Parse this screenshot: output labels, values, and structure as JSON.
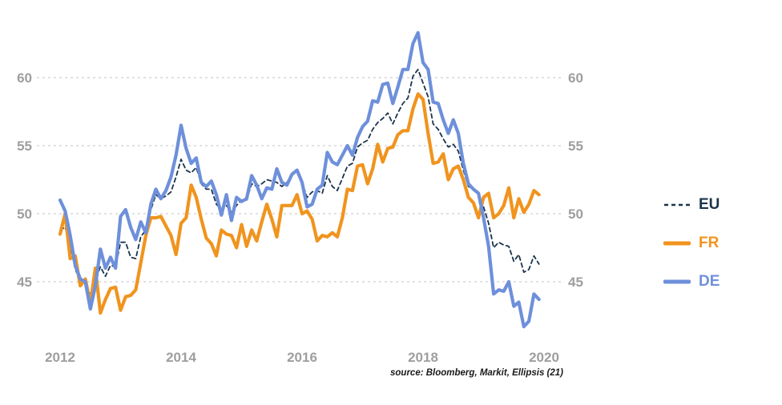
{
  "chart_data": {
    "type": "line",
    "title": "",
    "xlabel": "",
    "ylabel": "",
    "x_ticks": [
      2012,
      2014,
      2016,
      2018,
      2020
    ],
    "y_ticks": [
      45,
      50,
      55,
      60
    ],
    "xlim": [
      2011.6,
      2020.3
    ],
    "ylim": [
      40.5,
      65.0
    ],
    "grid": "horizontal-dashed",
    "grid_color": "#cfcfcf",
    "tick_label_color": "#9e9e9e",
    "legend_position": "right-outside",
    "x_start_year": 2012,
    "points_per_year": 12,
    "source_note": "source: Bloomberg, Markit, Ellipsis (21)",
    "series": [
      {
        "name": "EU",
        "color": "#1b344c",
        "style": "dashed",
        "width": 1.8,
        "values": [
          48.8,
          49.0,
          47.7,
          45.9,
          45.1,
          45.1,
          44.0,
          45.1,
          46.1,
          45.4,
          46.2,
          46.1,
          47.9,
          47.9,
          46.8,
          46.7,
          48.3,
          48.8,
          50.3,
          51.4,
          51.1,
          51.3,
          51.6,
          52.7,
          54.0,
          53.2,
          53.0,
          53.4,
          52.2,
          51.8,
          51.8,
          50.7,
          50.3,
          50.6,
          50.1,
          50.6,
          51.0,
          51.0,
          52.2,
          52.0,
          52.2,
          52.5,
          52.4,
          52.3,
          52.0,
          52.3,
          52.8,
          53.2,
          52.3,
          51.2,
          51.6,
          51.7,
          51.5,
          52.8,
          52.0,
          51.7,
          52.6,
          53.5,
          53.7,
          54.9,
          55.2,
          55.4,
          56.2,
          56.7,
          57.0,
          57.4,
          56.6,
          57.4,
          58.1,
          58.5,
          60.1,
          60.6,
          59.6,
          58.6,
          56.6,
          56.2,
          55.5,
          54.9,
          55.1,
          54.6,
          53.2,
          52.0,
          51.8,
          51.4,
          50.5,
          49.3,
          47.5,
          47.9,
          47.7,
          47.6,
          46.5,
          47.0,
          45.7,
          45.9,
          46.9,
          46.3
        ]
      },
      {
        "name": "FR",
        "color": "#f0941e",
        "style": "solid",
        "width": 4.2,
        "values": [
          48.5,
          50.0,
          46.7,
          46.9,
          44.7,
          45.2,
          43.4,
          46.0,
          42.7,
          43.7,
          44.5,
          44.6,
          42.9,
          43.9,
          44.0,
          44.4,
          46.4,
          48.4,
          49.7,
          49.7,
          49.8,
          49.1,
          48.4,
          47.0,
          49.3,
          49.7,
          52.1,
          51.2,
          49.6,
          48.2,
          47.8,
          46.9,
          48.8,
          48.5,
          48.4,
          47.5,
          49.2,
          47.6,
          48.8,
          48.0,
          49.4,
          50.7,
          49.6,
          48.3,
          50.6,
          50.6,
          50.6,
          51.4,
          50.0,
          50.2,
          49.6,
          48.0,
          48.4,
          48.3,
          48.6,
          48.3,
          49.7,
          51.8,
          51.7,
          53.5,
          53.6,
          52.2,
          53.3,
          55.1,
          53.8,
          54.8,
          54.9,
          55.8,
          56.1,
          56.1,
          57.7,
          58.8,
          58.4,
          55.9,
          53.7,
          53.8,
          54.4,
          52.5,
          53.3,
          53.5,
          52.5,
          51.2,
          50.8,
          49.7,
          51.2,
          51.5,
          49.7,
          50.0,
          50.6,
          51.9,
          49.7,
          51.1,
          50.1,
          50.7,
          51.7,
          51.4
        ]
      },
      {
        "name": "DE",
        "color": "#6e90db",
        "style": "solid",
        "width": 4.2,
        "values": [
          51.0,
          50.2,
          48.4,
          46.2,
          45.2,
          45.0,
          43.0,
          44.7,
          47.4,
          46.0,
          46.8,
          46.0,
          49.8,
          50.3,
          49.0,
          48.1,
          49.4,
          48.6,
          50.7,
          51.8,
          51.1,
          51.7,
          52.7,
          54.3,
          56.5,
          54.8,
          53.7,
          54.1,
          52.3,
          52.0,
          52.4,
          51.4,
          49.9,
          51.4,
          49.5,
          51.2,
          50.9,
          51.1,
          52.8,
          52.1,
          51.1,
          51.9,
          51.8,
          53.3,
          52.3,
          52.1,
          52.9,
          53.2,
          52.3,
          50.5,
          50.7,
          51.8,
          52.1,
          54.5,
          53.8,
          53.6,
          54.3,
          55.0,
          54.3,
          55.6,
          56.4,
          56.8,
          58.3,
          58.2,
          59.5,
          59.6,
          58.1,
          59.3,
          60.6,
          60.6,
          62.5,
          63.3,
          61.1,
          60.6,
          58.2,
          58.1,
          56.9,
          55.9,
          56.9,
          55.9,
          53.7,
          52.2,
          51.8,
          51.5,
          49.7,
          47.6,
          44.1,
          44.4,
          44.3,
          45.0,
          43.2,
          43.5,
          41.7,
          42.1,
          44.1,
          43.7
        ]
      }
    ]
  }
}
